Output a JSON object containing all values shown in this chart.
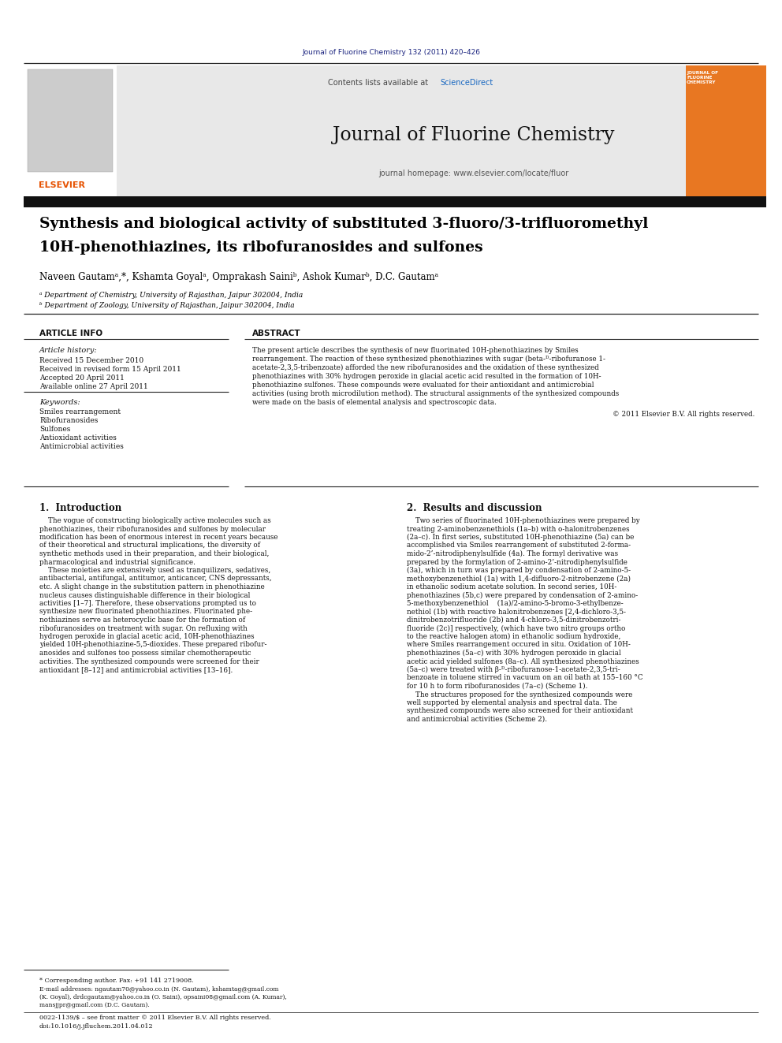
{
  "page_width": 9.92,
  "page_height": 13.23,
  "dpi": 100,
  "bg_color": "#ffffff",
  "header_journal_text": "Journal of Fluorine Chemistry 132 (2011) 420–426",
  "header_journal_color": "#1a237e",
  "contents_text": "Contents lists available at ",
  "science_direct_text": "ScienceDirect",
  "science_direct_color": "#1565C0",
  "journal_name": "Journal of Fluorine Chemistry",
  "journal_homepage": "journal homepage: www.elsevier.com/locate/fluor",
  "elsevier_color": "#E65100",
  "title_line1": "Synthesis and biological activity of substituted 3-fluoro/3-trifluoromethyl",
  "title_line2": "10H-phenothiazines, its ribofuranosides and sulfones",
  "authors": "Naveen Gautamᵃ,*, Kshamta Goyalᵃ, Omprakash Sainiᵇ, Ashok Kumarᵇ, D.C. Gautamᵃ",
  "affil_a": "ᵃ Department of Chemistry, University of Rajasthan, Jaipur 302004, India",
  "affil_b": "ᵇ Department of Zoology, University of Rajasthan, Jaipur 302004, India",
  "article_info_header": "ARTICLE INFO",
  "abstract_header": "ABSTRACT",
  "article_history_label": "Article history:",
  "received1": "Received 15 December 2010",
  "received2": "Received in revised form 15 April 2011",
  "accepted": "Accepted 20 April 2011",
  "available": "Available online 27 April 2011",
  "keywords_label": "Keywords:",
  "keywords": [
    "Smiles rearrangement",
    "Ribofuranosides",
    "Sulfones",
    "Antioxidant activities",
    "Antimicrobial activities"
  ],
  "copyright": "© 2011 Elsevier B.V. All rights reserved.",
  "intro_header": "1.  Introduction",
  "results_header": "2.  Results and discussion",
  "footnote_corresponding": "* Corresponding author. Fax: +91 141 2719008.",
  "footnote_email": "E-mail addresses: ngautam70@yahoo.co.in (N. Gautam), kshamtag@gmail.com",
  "footnote_email2": "(K. Goyal), drdcgautam@yahoo.co.in (O. Saini), opsaini08@gmail.com (A. Kumar),",
  "footnote_email3": "mansjjpr@gmail.com (D.C. Gautam).",
  "bottom_line1": "0022-1139/$ – see front matter © 2011 Elsevier B.V. All rights reserved.",
  "bottom_line2": "doi:10.1016/j.jfluchem.2011.04.012",
  "abstract_lines": [
    "The present article describes the synthesis of new fluorinated 10H-phenothiazines by Smiles",
    "rearrangement. The reaction of these synthesized phenothiazines with sugar (beta-ᴰ-ribofuranose 1-",
    "acetate-2,3,5-tribenzoate) afforded the new ribofuranosides and the oxidation of these synthesized",
    "phenothiazines with 30% hydrogen peroxide in glacial acetic acid resulted in the formation of 10H-",
    "phenothiazine sulfones. These compounds were evaluated for their antioxidant and antimicrobial",
    "activities (using broth microdilution method). The structural assignments of the synthesized compounds",
    "were made on the basis of elemental analysis and spectroscopic data."
  ],
  "intro_lines": [
    "    The vogue of constructing biologically active molecules such as",
    "phenothiazines, their ribofuranosides and sulfones by molecular",
    "modification has been of enormous interest in recent years because",
    "of their theoretical and structural implications, the diversity of",
    "synthetic methods used in their preparation, and their biological,",
    "pharmacological and industrial significance.",
    "    These moieties are extensively used as tranquilizers, sedatives,",
    "antibacterial, antifungal, antitumor, anticancer, CNS depressants,",
    "etc. A slight change in the substitution pattern in phenothiazine",
    "nucleus causes distinguishable difference in their biological",
    "activities [1–7]. Therefore, these observations prompted us to",
    "synthesize new fluorinated phenothiazines. Fluorinated phe-",
    "nothiazines serve as heterocyclic base for the formation of",
    "ribofuranosides on treatment with sugar. On refluxing with",
    "hydrogen peroxide in glacial acetic acid, 10H-phenothiazines",
    "yielded 10H-phenothiazine-5,5-dioxides. These prepared ribofur-",
    "anosides and sulfones too possess similar chemotherapeutic",
    "activities. The synthesized compounds were screened for their",
    "antioxidant [8–12] and antimicrobial activities [13–16]."
  ],
  "results_lines": [
    "    Two series of fluorinated 10H-phenothiazines were prepared by",
    "treating 2-aminobenzenethiols (1a–b) with o-halonitrobenzenes",
    "(2a–c). In first series, substituted 10H-phenothiazine (5a) can be",
    "accomplished via Smiles rearrangement of substituted 2-forma-",
    "mido-2’-nitrodiphenylsulfide (4a). The formyl derivative was",
    "prepared by the formylation of 2-amino-2’-nitrodiphenylsulfide",
    "(3a), which in turn was prepared by condensation of 2-amino-5-",
    "methoxybenzenethiol (1a) with 1,4-difluoro-2-nitrobenzene (2a)",
    "in ethanolic sodium acetate solution. In second series, 10H-",
    "phenothiazines (5b,c) were prepared by condensation of 2-amino-",
    "5-methoxybenzenethiol    (1a)/2-amino-5-bromo-3-ethylbenze-",
    "nethiol (1b) with reactive halonitrobenzenes [2,4-dichloro-3,5-",
    "dinitrobenzotrifluoride (2b) and 4-chloro-3,5-dinitrobenzotri-",
    "fluoride (2c)] respectively, (which have two nitro groups ortho",
    "to the reactive halogen atom) in ethanolic sodium hydroxide,",
    "where Smiles rearrangement occured in situ. Oxidation of 10H-",
    "phenothiazines (5a–c) with 30% hydrogen peroxide in glacial",
    "acetic acid yielded sulfones (8a–c). All synthesized phenothiazines",
    "(5a–c) were treated with β-ᴰ-ribofuranose-1-acetate-2,3,5-tri-",
    "benzoate in toluene stirred in vacuum on an oil bath at 155–160 °C",
    "for 10 h to form ribofuranosides (7a–c) (Scheme 1).",
    "    The structures proposed for the synthesized compounds were",
    "well supported by elemental analysis and spectral data. The",
    "synthesized compounds were also screened for their antioxidant",
    "and antimicrobial activities (Scheme 2)."
  ]
}
